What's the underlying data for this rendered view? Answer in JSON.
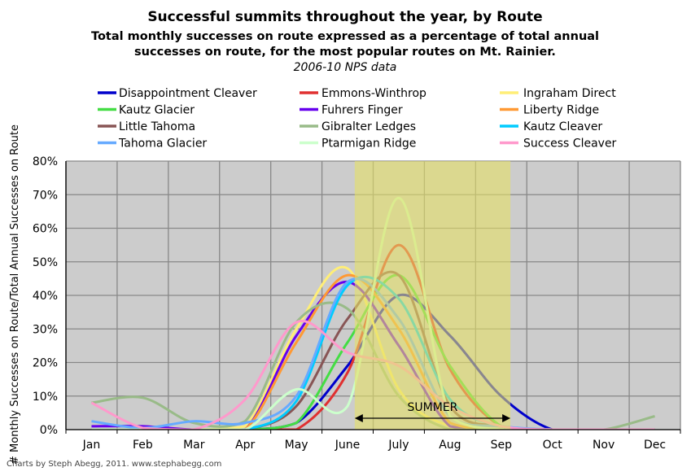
{
  "chart_data": {
    "type": "line",
    "title": "Successful summits throughout the year, by Route",
    "subtitle_lines": [
      "Total monthly successes on route expressed as a percentage of total annual",
      "successes on route, for the most popular routes on Mt. Rainier."
    ],
    "source_note": "2006-10 NPS data",
    "xlabel": "",
    "ylabel": "# Monthly Successes on Route/Total Annual Successes on Route",
    "categories": [
      "Jan",
      "Feb",
      "Mar",
      "Apr",
      "May",
      "June",
      "July",
      "Aug",
      "Sep",
      "Oct",
      "Nov",
      "Dec"
    ],
    "ylim": [
      0,
      80
    ],
    "yticks": [
      "0%",
      "10%",
      "20%",
      "30%",
      "40%",
      "50%",
      "60%",
      "70%",
      "80%"
    ],
    "grid": true,
    "legend_position": "top",
    "smoothed": true,
    "background_color": "#cccccc",
    "annotation": {
      "label": "SUMMER",
      "start_month_pos": 5.64,
      "end_month_pos": 8.68,
      "color": "#e5e066"
    },
    "series": [
      {
        "name": "Disappointment Cleaver",
        "color": "#0000cc",
        "values": [
          0,
          0,
          0,
          0,
          2,
          19,
          40,
          28,
          10,
          0,
          0,
          0
        ]
      },
      {
        "name": "Emmons-Winthrop",
        "color": "#e03030",
        "values": [
          0,
          0,
          0,
          0,
          0,
          17,
          55,
          18,
          1,
          0,
          0,
          0
        ]
      },
      {
        "name": "Ingraham Direct",
        "color": "#ffee77",
        "values": [
          0,
          0,
          0,
          1,
          30,
          48,
          12,
          1,
          0,
          0,
          0,
          0
        ]
      },
      {
        "name": "Kautz Glacier",
        "color": "#44dd44",
        "values": [
          0,
          0,
          0,
          0,
          2,
          26,
          46,
          19,
          1,
          0,
          0,
          0
        ]
      },
      {
        "name": "Fuhrers Finger",
        "color": "#6600ee",
        "values": [
          1,
          1,
          0,
          0,
          28,
          44,
          25,
          1,
          0,
          0,
          0,
          0
        ]
      },
      {
        "name": "Liberty Ridge",
        "color": "#ff9933",
        "values": [
          0,
          0,
          0,
          0,
          26,
          46,
          30,
          2,
          0,
          0,
          0,
          0
        ]
      },
      {
        "name": "Little Tahoma",
        "color": "#885555",
        "values": [
          0,
          0,
          0,
          0,
          7,
          33,
          46,
          7,
          1,
          0,
          0,
          0
        ]
      },
      {
        "name": "Gibralter Ledges",
        "color": "#99bb88",
        "values": [
          8,
          9.5,
          2,
          2.5,
          32,
          36,
          10,
          0,
          0,
          0,
          0,
          4
        ]
      },
      {
        "name": "Kautz Cleaver",
        "color": "#00ccff",
        "values": [
          0,
          0,
          0,
          0,
          8.5,
          43,
          39,
          9,
          1,
          0,
          0,
          0
        ]
      },
      {
        "name": "Tahoma Glacier",
        "color": "#66aaff",
        "values": [
          2.5,
          0.5,
          2.5,
          2,
          10,
          44,
          33,
          4,
          1,
          0,
          0,
          0
        ]
      },
      {
        "name": "Ptarmigan Ridge",
        "color": "#ccffcc",
        "values": [
          0,
          0,
          0,
          0,
          12,
          7,
          69,
          4,
          0,
          0,
          0,
          0
        ]
      },
      {
        "name": "Success Cleaver",
        "color": "#ff99cc",
        "values": [
          8,
          0.5,
          0,
          9,
          32,
          23,
          19,
          7,
          1,
          0,
          0,
          0
        ]
      }
    ]
  },
  "footer": "Charts by Steph Abegg, 2011. www.stephabegg.com"
}
